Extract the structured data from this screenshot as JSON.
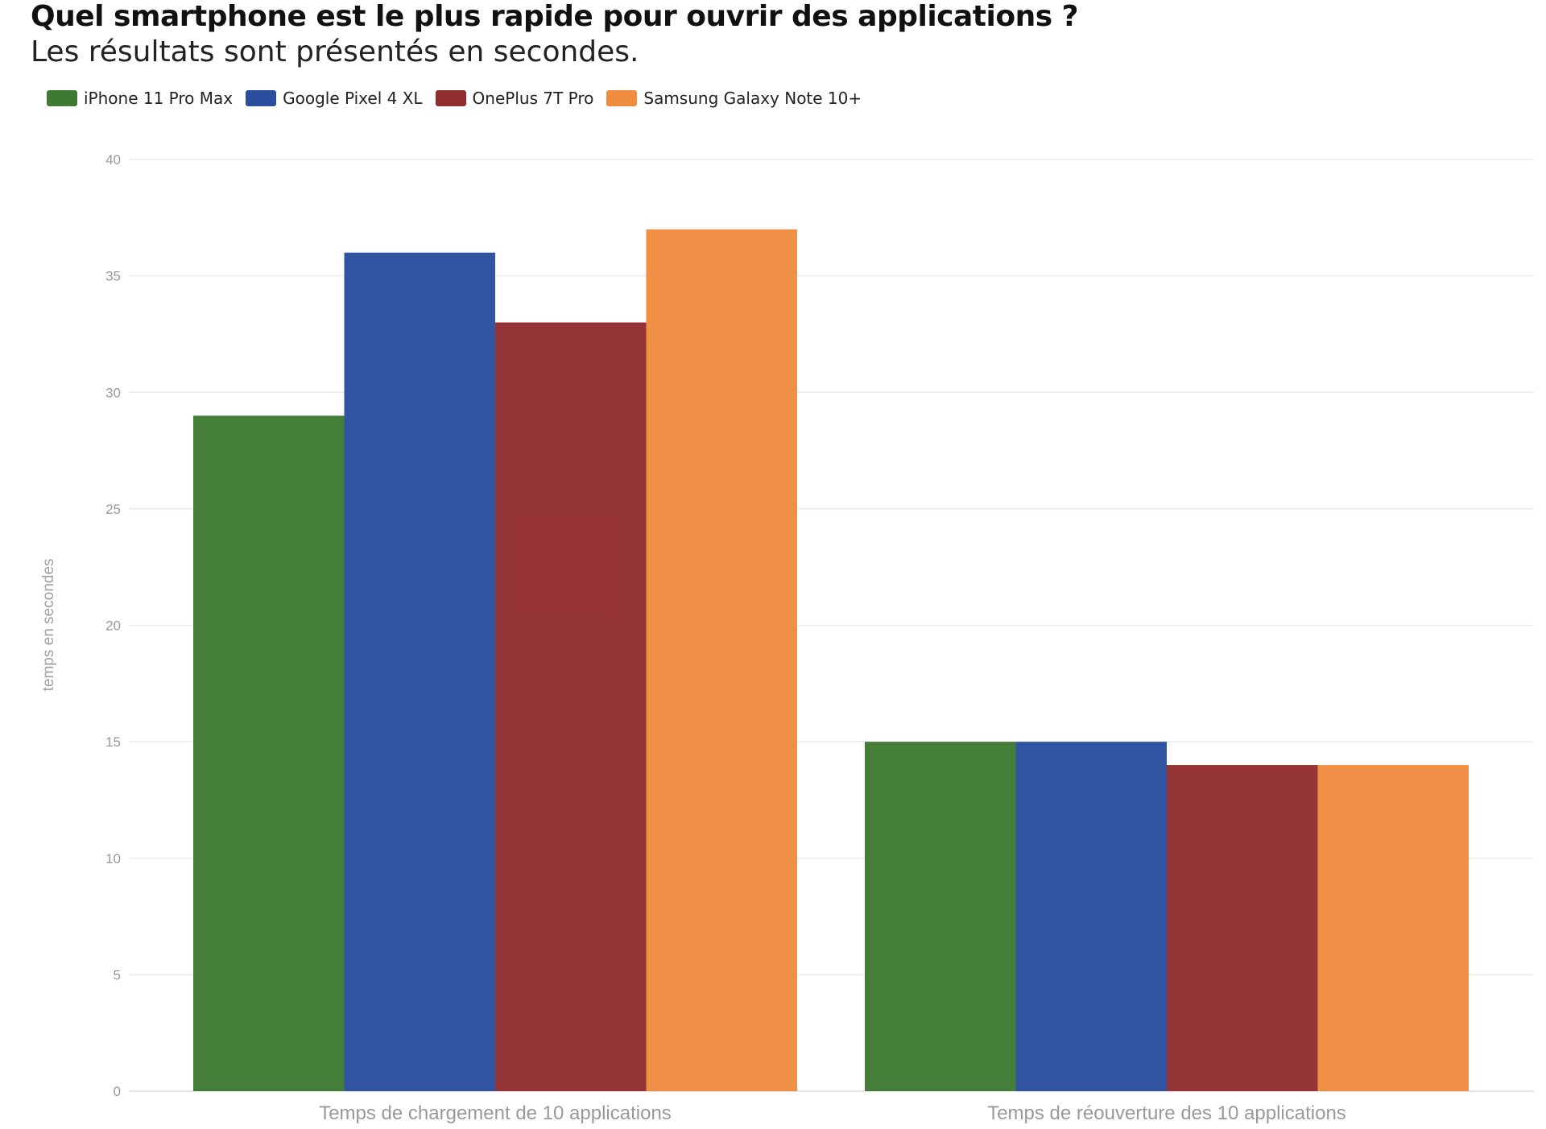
{
  "chart_data": {
    "type": "bar",
    "title": "Quel smartphone est le plus rapide pour ouvrir des applications ?",
    "subtitle": "Les résultats sont présentés en secondes.",
    "categories": [
      "Temps de chargement de 10 applications",
      "Temps de réouverture des 10 applications"
    ],
    "series": [
      {
        "name": "iPhone 11 Pro Max",
        "color": "#3f7a33",
        "values": [
          29,
          15
        ]
      },
      {
        "name": "Google Pixel 4 XL",
        "color": "#2b4f9e",
        "values": [
          36,
          15
        ]
      },
      {
        "name": "OnePlus 7T Pro",
        "color": "#922d2f",
        "values": [
          33,
          14
        ]
      },
      {
        "name": "Samsung Galaxy Note 10+",
        "color": "#f08c40",
        "values": [
          37,
          14
        ]
      }
    ],
    "xlabel": "",
    "ylabel": "temps en secondes",
    "ylim": [
      0,
      40
    ],
    "yticks": [
      0,
      5,
      10,
      15,
      20,
      25,
      30,
      35,
      40
    ],
    "grid": true,
    "legend_position": "top-left"
  }
}
